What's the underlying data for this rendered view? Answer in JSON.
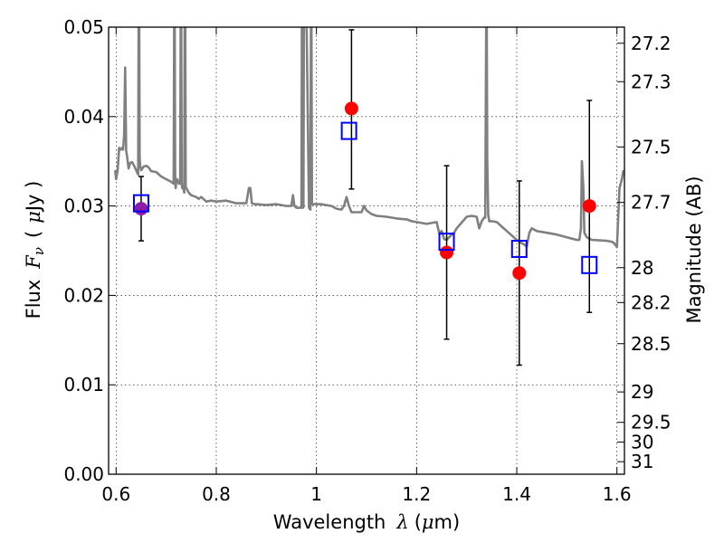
{
  "chart_data": {
    "type": "scatter",
    "xlabel_text": "Wavelength",
    "xlabel_symbol": "λ",
    "xlabel_unit_pre": "(",
    "xlabel_unit_mu": "μ",
    "xlabel_unit_post": "m)",
    "ylabel_text": "Flux",
    "ylabel_symbol": "F",
    "ylabel_sub": "ν",
    "ylabel_unit_pre": "(",
    "ylabel_unit_mu": "μ",
    "ylabel_unit_post": "Jy )",
    "y2label": "Magnitude (AB)",
    "xlim": [
      0.585,
      1.615
    ],
    "ylim": [
      0.0,
      0.05
    ],
    "xticks": [
      0.6,
      0.8,
      1.0,
      1.2,
      1.4,
      1.6
    ],
    "xtick_labels": [
      "0.6",
      "0.8",
      "1",
      "1.2",
      "1.4",
      "1.6"
    ],
    "yticks": [
      0.0,
      0.01,
      0.02,
      0.03,
      0.04,
      0.05
    ],
    "ytick_labels": [
      "0.00",
      "0.01",
      "0.02",
      "0.03",
      "0.04",
      "0.05"
    ],
    "y2ticks": [
      {
        "label": "27.2",
        "flux": 0.0482
      },
      {
        "label": "27.3",
        "flux": 0.0439
      },
      {
        "label": "27.5",
        "flux": 0.0366
      },
      {
        "label": "27.7",
        "flux": 0.0304
      },
      {
        "label": "28",
        "flux": 0.0231
      },
      {
        "label": "28.2",
        "flux": 0.0192
      },
      {
        "label": "28.5",
        "flux": 0.0146
      },
      {
        "label": "29",
        "flux": 0.0092
      },
      {
        "label": "29.5",
        "flux": 0.0058
      },
      {
        "label": "30",
        "flux": 0.0036
      },
      {
        "label": "31",
        "flux": 0.0014
      }
    ],
    "grid": true,
    "spectrum": {
      "color": "#808080",
      "x": [
        0.598,
        0.6,
        0.603,
        0.606,
        0.609,
        0.612,
        0.614,
        0.616,
        0.618,
        0.62,
        0.622,
        0.625,
        0.628,
        0.632,
        0.636,
        0.64,
        0.644,
        0.645,
        0.646,
        0.647,
        0.648,
        0.65,
        0.655,
        0.66,
        0.665,
        0.67,
        0.68,
        0.69,
        0.7,
        0.71,
        0.715,
        0.716,
        0.717,
        0.718,
        0.719,
        0.72,
        0.722,
        0.725,
        0.728,
        0.729,
        0.73,
        0.731,
        0.732,
        0.734,
        0.736,
        0.737,
        0.738,
        0.739,
        0.74,
        0.742,
        0.745,
        0.75,
        0.76,
        0.765,
        0.77,
        0.78,
        0.79,
        0.8,
        0.82,
        0.84,
        0.86,
        0.865,
        0.868,
        0.871,
        0.875,
        0.88,
        0.9,
        0.92,
        0.94,
        0.95,
        0.953,
        0.956,
        0.96,
        0.965,
        0.97,
        0.971,
        0.972,
        0.973,
        0.974,
        0.975,
        0.98,
        0.985,
        0.988,
        0.989,
        0.99,
        0.991,
        0.992,
        0.995,
        1.0,
        1.01,
        1.02,
        1.03,
        1.04,
        1.05,
        1.055,
        1.06,
        1.065,
        1.07,
        1.08,
        1.09,
        1.095,
        1.1,
        1.11,
        1.12,
        1.14,
        1.16,
        1.18,
        1.19,
        1.2,
        1.22,
        1.24,
        1.245,
        1.25,
        1.255,
        1.26,
        1.27,
        1.275,
        1.28,
        1.3,
        1.31,
        1.32,
        1.325,
        1.33,
        1.335,
        1.337,
        1.339,
        1.34,
        1.341,
        1.343,
        1.345,
        1.35,
        1.36,
        1.38,
        1.4,
        1.42,
        1.425,
        1.43,
        1.44,
        1.46,
        1.48,
        1.5,
        1.52,
        1.525,
        1.528,
        1.53,
        1.533,
        1.535,
        1.54,
        1.55,
        1.58,
        1.59,
        1.595,
        1.6,
        1.605,
        1.61,
        1.613
      ],
      "y": [
        0.034,
        0.033,
        0.034,
        0.0365,
        0.0363,
        0.0365,
        0.0363,
        0.038,
        0.0455,
        0.0362,
        0.0355,
        0.0342,
        0.0348,
        0.0349,
        0.0345,
        0.034,
        0.0335,
        0.052,
        0.052,
        0.0355,
        0.0345,
        0.034,
        0.0344,
        0.0345,
        0.0343,
        0.0339,
        0.0338,
        0.0333,
        0.033,
        0.0327,
        0.0325,
        0.052,
        0.052,
        0.0325,
        0.032,
        0.033,
        0.033,
        0.0325,
        0.0325,
        0.052,
        0.052,
        0.0325,
        0.032,
        0.032,
        0.0315,
        0.052,
        0.052,
        0.032,
        0.032,
        0.0318,
        0.0315,
        0.0312,
        0.031,
        0.0308,
        0.031,
        0.0305,
        0.0306,
        0.0305,
        0.0306,
        0.0303,
        0.0303,
        0.032,
        0.032,
        0.0303,
        0.0302,
        0.0302,
        0.0301,
        0.0302,
        0.03,
        0.03,
        0.0312,
        0.03,
        0.0298,
        0.0298,
        0.0298,
        0.052,
        0.052,
        0.0298,
        0.0299,
        0.052,
        0.052,
        0.0298,
        0.0296,
        0.052,
        0.052,
        0.0302,
        0.0302,
        0.0302,
        0.0302,
        0.0302,
        0.0301,
        0.03,
        0.0297,
        0.0296,
        0.03,
        0.031,
        0.03,
        0.0293,
        0.0293,
        0.0293,
        0.03,
        0.0295,
        0.0291,
        0.0289,
        0.0288,
        0.0286,
        0.0285,
        0.0283,
        0.0282,
        0.028,
        0.0282,
        0.027,
        0.0272,
        0.0263,
        0.0262,
        0.0268,
        0.027,
        0.0275,
        0.0288,
        0.0289,
        0.0288,
        0.0275,
        0.0283,
        0.0287,
        0.0287,
        0.052,
        0.052,
        0.035,
        0.029,
        0.0283,
        0.0283,
        0.0282,
        0.0272,
        0.0262,
        0.0255,
        0.027,
        0.0275,
        0.0272,
        0.027,
        0.0268,
        0.0265,
        0.0262,
        0.0262,
        0.0275,
        0.035,
        0.032,
        0.027,
        0.0265,
        0.0262,
        0.0261,
        0.026,
        0.0258,
        0.0254,
        0.032,
        0.033,
        0.034
      ]
    },
    "observed": {
      "name": "observed",
      "color": "#ff0000",
      "points": [
        {
          "x": 0.65,
          "y": 0.0297,
          "yerr_low": 0.0261,
          "yerr_high": 0.0333
        },
        {
          "x": 1.07,
          "y": 0.0409,
          "yerr_low": 0.0319,
          "yerr_high": 0.0497
        },
        {
          "x": 1.26,
          "y": 0.0248,
          "yerr_low": 0.0151,
          "yerr_high": 0.0345
        },
        {
          "x": 1.405,
          "y": 0.0225,
          "yerr_low": 0.0122,
          "yerr_high": 0.0328
        },
        {
          "x": 1.545,
          "y": 0.03,
          "yerr_low": 0.0181,
          "yerr_high": 0.0418
        }
      ]
    },
    "model": {
      "name": "model",
      "color": "#0000ff",
      "points": [
        {
          "x": 0.65,
          "y": 0.0303
        },
        {
          "x": 1.065,
          "y": 0.0384
        },
        {
          "x": 1.26,
          "y": 0.026
        },
        {
          "x": 1.405,
          "y": 0.0252
        },
        {
          "x": 1.545,
          "y": 0.0234
        }
      ]
    },
    "overlap_color": "#8e1aa8"
  }
}
